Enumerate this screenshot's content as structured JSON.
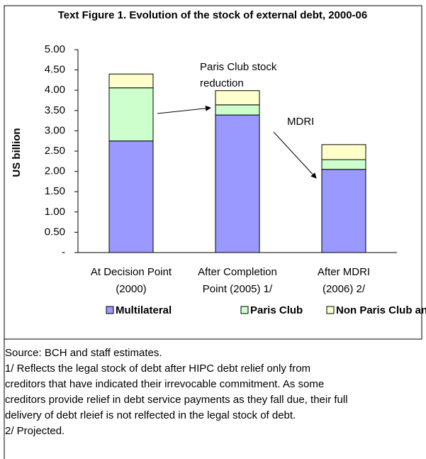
{
  "chart_data": {
    "type": "stacked-bar",
    "title": "Text Figure 1. Evolution of the stock of external debt, 2000-06",
    "y_label": "US billion",
    "categories": [
      [
        "At Decision Point",
        "(2000)"
      ],
      [
        "After Completion",
        "Point (2005) 1/"
      ],
      [
        "After MDRI",
        "(2006) 2/"
      ]
    ],
    "series": [
      {
        "name": "Multilateral",
        "color": "#9999ff",
        "values": [
          2.75,
          3.39,
          2.05
        ]
      },
      {
        "name": "Paris Club",
        "color": "#ccffcc",
        "values": [
          1.31,
          0.25,
          0.24
        ]
      },
      {
        "name": "Non Paris Club and Commercial",
        "color": "#ffffcc",
        "values": [
          0.34,
          0.35,
          0.37
        ]
      }
    ],
    "ylim": [
      0,
      5
    ],
    "yticks": [
      {
        "value": 0,
        "label": "-"
      },
      {
        "value": 0.5,
        "label": "0.50"
      },
      {
        "value": 1,
        "label": "1.00"
      },
      {
        "value": 1.5,
        "label": "1.50"
      },
      {
        "value": 2,
        "label": "2.00"
      },
      {
        "value": 2.5,
        "label": "2.50"
      },
      {
        "value": 3,
        "label": "3.00"
      },
      {
        "value": 3.5,
        "label": "3.50"
      },
      {
        "value": 4,
        "label": "4.00"
      },
      {
        "value": 4.5,
        "label": "4.50"
      },
      {
        "value": 5,
        "label": "5.00"
      }
    ],
    "annotations": [
      [
        "Paris Club stock",
        "reduction"
      ],
      [
        "MDRI"
      ]
    ],
    "notes": [
      "Source: BCH and staff estimates.",
      "1/ Reflects the legal stock of debt after HIPC debt relief only from",
      "creditors that have indicated their irrevocable commitment. As some",
      "creditors provide relief in debt service payments as they fall due, their full",
      "delivery of debt rleief is not relfected in the legal stock of debt.",
      "2/ Projected."
    ]
  }
}
